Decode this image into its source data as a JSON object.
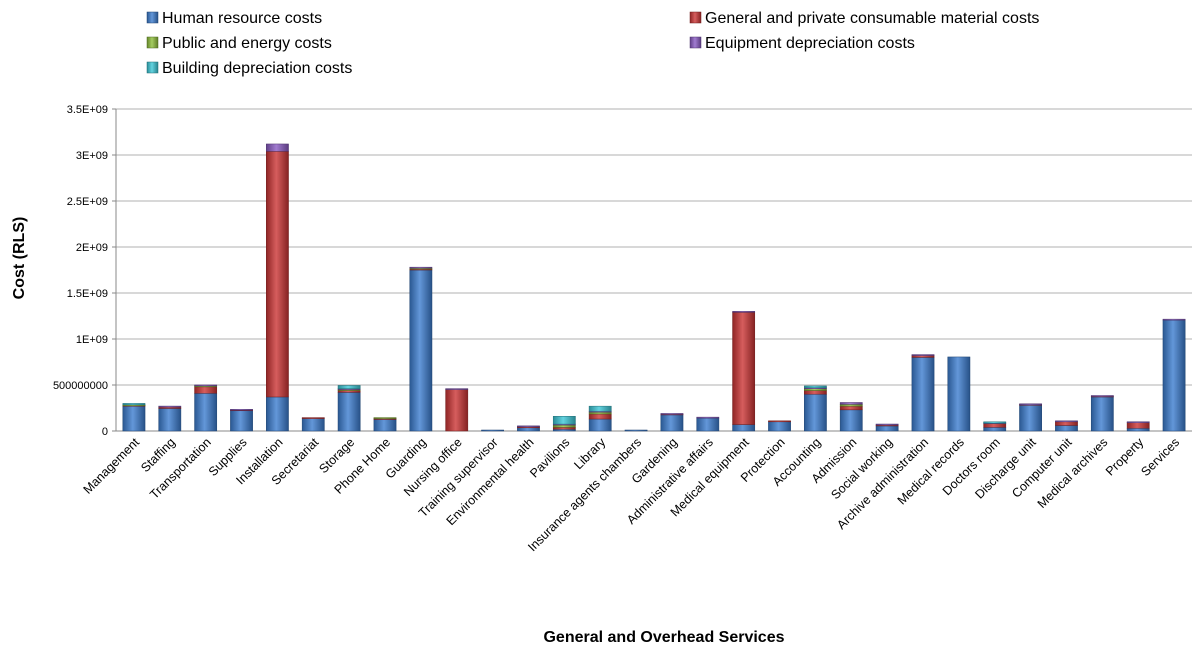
{
  "chart_data": {
    "type": "bar",
    "stacked": true,
    "title": "",
    "xlabel": "General and Overhead Services",
    "ylabel": "Cost (RLS)",
    "ylim": [
      0,
      3500000000
    ],
    "yticks": [
      0,
      500000000,
      1000000000,
      1500000000,
      2000000000,
      2500000000,
      3000000000,
      3500000000
    ],
    "ytick_labels": [
      "0",
      "500000000",
      "1E+09",
      "1.5E+09",
      "2E+09",
      "2.5E+09",
      "3E+09",
      "3.5E+09"
    ],
    "grid": true,
    "legend_position": "top",
    "categories": [
      "Management",
      "Staffing",
      "Transportation",
      "Supplies",
      "Installation",
      "Secretariat",
      "Storage",
      "Phone Home",
      "Guarding",
      "Nursing office",
      "Training supervisor",
      "Environmental health",
      "Pavilions",
      "Library",
      "Insurance agents chambers",
      "Gardening",
      "Administrative affairs",
      "Medical equipment",
      "Protection",
      "Accounting",
      "Admission",
      "Social working",
      "Archive administration",
      "Medical records",
      "Doctors room",
      "Discharge unit",
      "Computer unit",
      "Medical archives",
      "Property",
      "Services"
    ],
    "series": [
      {
        "name": "Human resource costs",
        "color": "#3c7dd0",
        "values": [
          270000000,
          245000000,
          410000000,
          220000000,
          370000000,
          135000000,
          420000000,
          125000000,
          1750000000,
          0,
          5000000,
          35000000,
          20000000,
          130000000,
          3000000,
          175000000,
          140000000,
          70000000,
          100000000,
          400000000,
          230000000,
          55000000,
          800000000,
          805000000,
          40000000,
          280000000,
          60000000,
          370000000,
          30000000,
          1205000000
        ]
      },
      {
        "name": "General and private consumable material costs",
        "color": "#cc3535",
        "values": [
          5000000,
          15000000,
          70000000,
          5000000,
          2670000000,
          5000000,
          20000000,
          10000000,
          10000000,
          450000000,
          0,
          10000000,
          20000000,
          55000000,
          0,
          5000000,
          0,
          1220000000,
          5000000,
          40000000,
          40000000,
          10000000,
          20000000,
          0,
          40000000,
          5000000,
          40000000,
          5000000,
          60000000,
          0
        ]
      },
      {
        "name": "Public and energy costs",
        "color": "#8fbf3a",
        "values": [
          10000000,
          0,
          10000000,
          0,
          0,
          0,
          10000000,
          10000000,
          10000000,
          0,
          0,
          0,
          25000000,
          20000000,
          0,
          0,
          0,
          0,
          0,
          20000000,
          20000000,
          0,
          0,
          0,
          0,
          0,
          0,
          0,
          0,
          0
        ]
      },
      {
        "name": "Equipment depreciation costs",
        "color": "#8a5bc4",
        "values": [
          0,
          5000000,
          5000000,
          5000000,
          80000000,
          0,
          10000000,
          0,
          5000000,
          5000000,
          0,
          10000000,
          10000000,
          10000000,
          0,
          5000000,
          5000000,
          5000000,
          0,
          10000000,
          20000000,
          10000000,
          10000000,
          0,
          5000000,
          5000000,
          5000000,
          5000000,
          5000000,
          5000000
        ]
      },
      {
        "name": "Building depreciation costs",
        "color": "#3cc8d8",
        "values": [
          15000000,
          0,
          0,
          0,
          0,
          0,
          35000000,
          0,
          0,
          0,
          0,
          0,
          85000000,
          55000000,
          0,
          0,
          0,
          0,
          0,
          20000000,
          0,
          0,
          0,
          0,
          15000000,
          0,
          0,
          0,
          0,
          0
        ]
      }
    ]
  }
}
